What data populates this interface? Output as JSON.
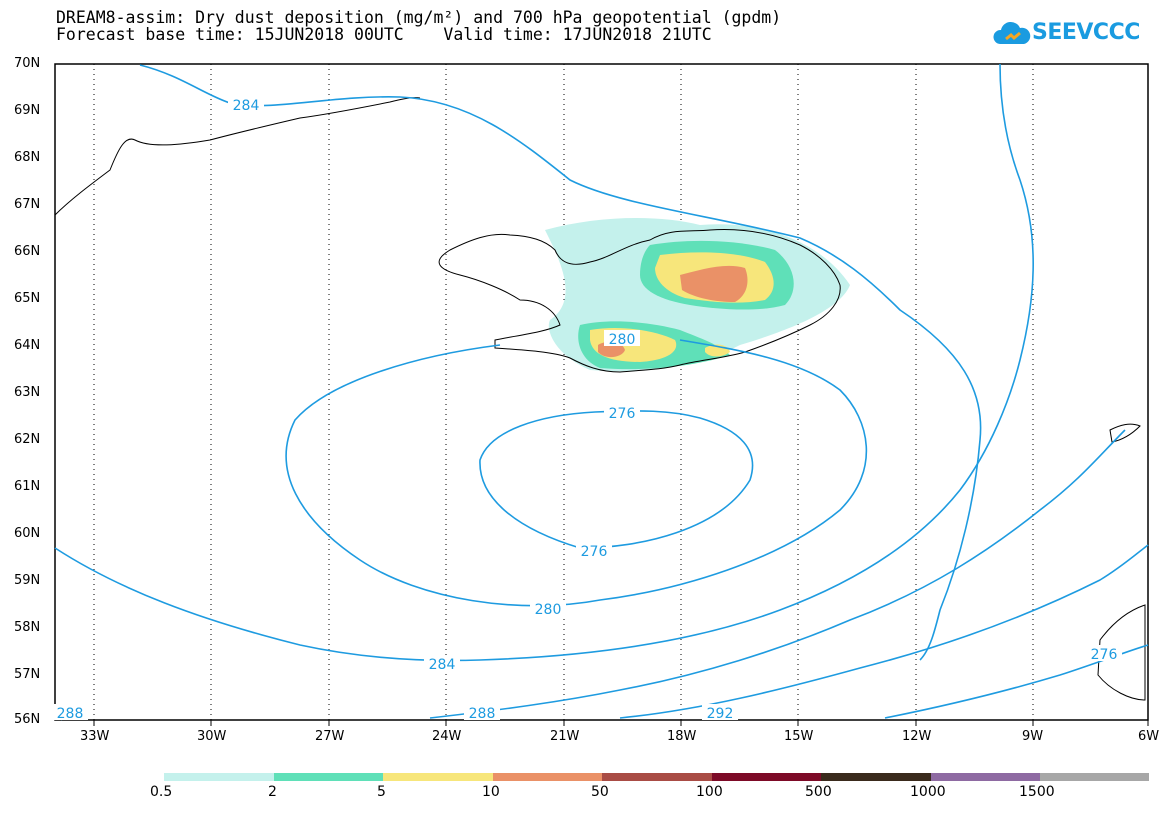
{
  "title": {
    "line1": "DREAM8-assim: Dry dust deposition (mg/m²) and 700 hPa geopotential (gpdm)",
    "line2": "Forecast base time: 15JUN2018 00UTC    Valid time: 17JUN2018 21UTC"
  },
  "logo": {
    "text": "SEEVCCC",
    "icon": "cloud-icon"
  },
  "map": {
    "lat_labels": [
      "70N",
      "69N",
      "68N",
      "67N",
      "66N",
      "65N",
      "64N",
      "63N",
      "62N",
      "61N",
      "60N",
      "59N",
      "58N",
      "57N",
      "56N"
    ],
    "lon_labels": [
      "33W",
      "30W",
      "27W",
      "24W",
      "21W",
      "18W",
      "15W",
      "12W",
      "9W",
      "6W"
    ],
    "contour_labels": [
      "284",
      "280",
      "276",
      "276",
      "280",
      "284",
      "288",
      "288",
      "292",
      "276"
    ],
    "contour_color": "#1e9be0",
    "contour_interval_gpdm": 4
  },
  "colorbar": {
    "colors": [
      "#c4f1ec",
      "#5fe0b8",
      "#f7e67b",
      "#ea9167",
      "#a94c45",
      "#7d0a27",
      "#3a2a1c",
      "#8e6aa2",
      "#a7a7a7"
    ],
    "labels": [
      "0.5",
      "2",
      "5",
      "10",
      "50",
      "100",
      "500",
      "1000",
      "1500"
    ]
  }
}
